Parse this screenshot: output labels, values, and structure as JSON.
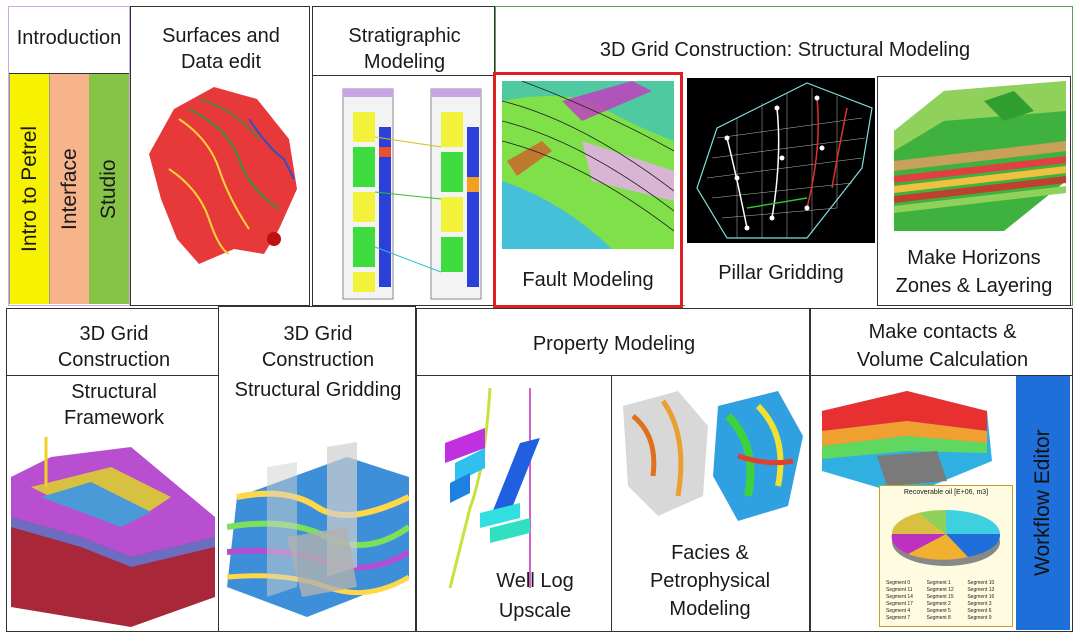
{
  "top": {
    "introduction": {
      "title": "Introduction",
      "tabs": [
        {
          "label": "Intro to Petrel",
          "color": "#f7f200"
        },
        {
          "label": "Interface",
          "color": "#f7b48a"
        },
        {
          "label": "Studio",
          "color": "#86c447"
        }
      ]
    },
    "surfaces": {
      "line1": "Surfaces and",
      "line2": "Data edit"
    },
    "stratigraphic": {
      "line1": "Stratigraphic",
      "line2": "Modeling"
    },
    "grid_structural": {
      "title": "3D Grid Construction: Structural Modeling",
      "fault": "Fault Modeling",
      "pillar": "Pillar Gridding",
      "horizons_line1": "Make  Horizons",
      "horizons_line2": "Zones & Layering"
    }
  },
  "bottom": {
    "framework": {
      "line1": "3D Grid",
      "line2": "Construction",
      "line3": "Structural",
      "line4": "Framework"
    },
    "gridding": {
      "line1": "3D Grid",
      "line2": "Construction",
      "line3": "Structural Gridding"
    },
    "property": {
      "title": "Property Modeling",
      "upscale_line1": "Well  Log",
      "upscale_line2": "Upscale",
      "facies_line1": "Facies &",
      "facies_line2": "Petrophysical",
      "facies_line3": "Modeling"
    },
    "contacts": {
      "line1": "Make contacts &",
      "line2": "Volume Calculation",
      "workflow": "Workflow Editor",
      "workflow_color": "#1e6fd9",
      "pie_title": "Recoverable oil [E+06, m3]",
      "legend": [
        "Segment 0",
        "Segment 1",
        "Segment 10",
        "Segment 11",
        "Segment 12",
        "Segment 13",
        "Segment 14",
        "Segment 15",
        "Segment 16",
        "Segment 17",
        "Segment 2",
        "Segment 3",
        "Segment 4",
        "Segment 5",
        "Segment 6",
        "Segment 7",
        "Segment 8",
        "Segment 9"
      ]
    }
  },
  "highlight_color": "#e02020"
}
